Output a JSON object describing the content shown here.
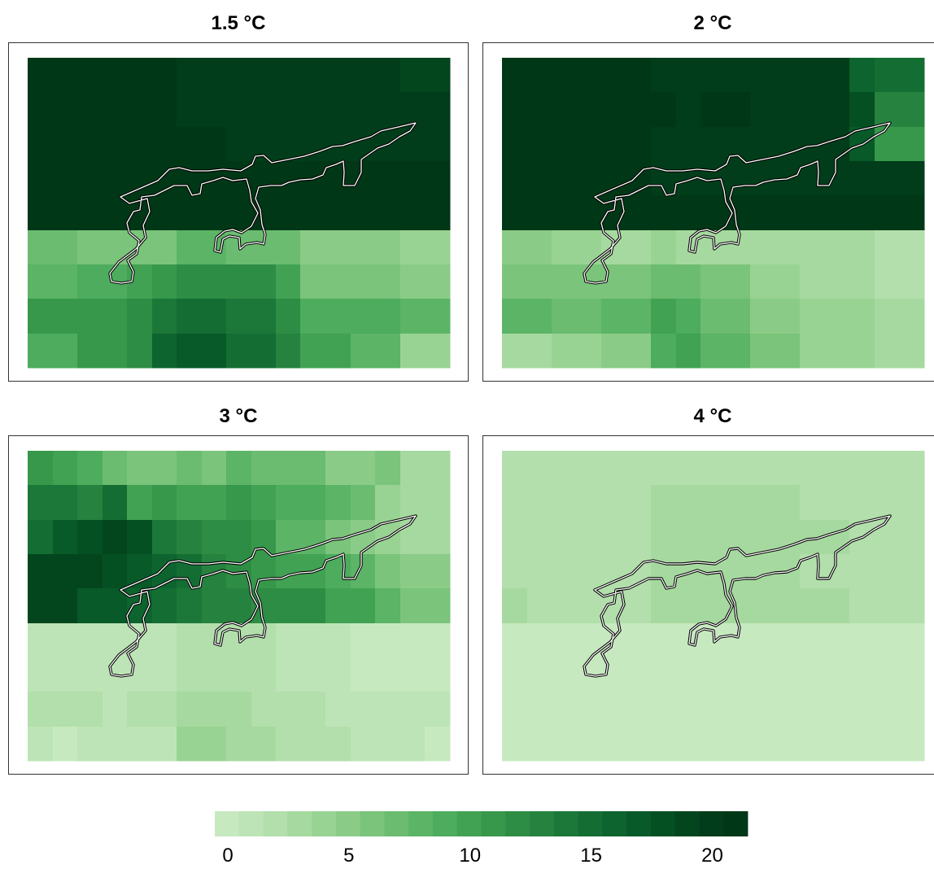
{
  "chart_data": {
    "type": "heatmap",
    "colorbar": {
      "range": [
        0,
        22
      ],
      "steps": 22,
      "ticks": [
        "0",
        "5",
        "10",
        "15",
        "20"
      ],
      "tick_values": [
        0,
        5,
        10,
        15,
        20
      ],
      "colors": [
        "#c7e9c0",
        "#bde4b6",
        "#b2dfab",
        "#a6d99f",
        "#99d393",
        "#8acc87",
        "#7bc47b",
        "#6bbc70",
        "#5cb466",
        "#4dac5d",
        "#41a253",
        "#37984b",
        "#2e8d44",
        "#25833f",
        "#1c7839",
        "#146e33",
        "#0d642e",
        "#085a28",
        "#055023",
        "#03461e",
        "#013d1a",
        "#003716"
      ]
    },
    "panels": [
      {
        "title": "1.5 °C",
        "cols": [
          0,
          61,
          122,
          153,
          183,
          244,
          305,
          335,
          397,
          458,
          519
        ],
        "rows": [
          0,
          42,
          85,
          127,
          169,
          212,
          254,
          296,
          339,
          381
        ],
        "values": [
          [
            22,
            22,
            22,
            22,
            20,
            20,
            20,
            20,
            20,
            19
          ],
          [
            22,
            22,
            22,
            22,
            20,
            20,
            20,
            20,
            20,
            20
          ],
          [
            22,
            22,
            22,
            22,
            22,
            20,
            20,
            20,
            20,
            20
          ],
          [
            21,
            21,
            21,
            21,
            21,
            21,
            21,
            21,
            21,
            21
          ],
          [
            21,
            21,
            21,
            21,
            21,
            21,
            21,
            21,
            21,
            21
          ],
          [
            7,
            6,
            6,
            6,
            8,
            7,
            7,
            5,
            5,
            4
          ],
          [
            8,
            9,
            10,
            11,
            12,
            12,
            10,
            6,
            6,
            5
          ],
          [
            11,
            11,
            12,
            14,
            15,
            14,
            12,
            9,
            9,
            8
          ],
          [
            9,
            11,
            12,
            16,
            17,
            15,
            13,
            10,
            8,
            4
          ]
        ]
      },
      {
        "title": "2 °C",
        "cols": [
          0,
          61,
          122,
          183,
          214,
          244,
          305,
          366,
          427,
          458,
          488,
          519
        ],
        "rows": [
          0,
          42,
          85,
          127,
          169,
          212,
          254,
          296,
          339,
          381
        ],
        "values": [
          [
            22,
            22,
            22,
            20,
            20,
            20,
            20,
            20,
            16,
            15,
            15
          ],
          [
            22,
            22,
            22,
            21,
            20,
            21,
            20,
            20,
            18,
            13,
            13
          ],
          [
            22,
            22,
            22,
            20,
            20,
            20,
            20,
            20,
            17,
            11,
            11
          ],
          [
            22,
            22,
            22,
            20,
            20,
            20,
            20,
            20,
            20,
            20,
            20
          ],
          [
            22,
            22,
            22,
            21,
            21,
            21,
            21,
            21,
            21,
            21,
            21
          ],
          [
            5,
            4,
            3,
            4,
            3,
            3,
            3,
            3,
            3,
            2,
            2
          ],
          [
            6,
            6,
            6,
            7,
            7,
            6,
            4,
            3,
            3,
            2,
            2
          ],
          [
            8,
            7,
            8,
            10,
            9,
            7,
            5,
            4,
            4,
            3,
            3
          ],
          [
            3,
            4,
            5,
            9,
            10,
            8,
            6,
            4,
            4,
            3,
            3
          ]
        ]
      },
      {
        "title": "3 °C",
        "cols": [
          0,
          31,
          61,
          92,
          122,
          153,
          183,
          214,
          244,
          275,
          305,
          366,
          397,
          427,
          458,
          488,
          519
        ],
        "rows": [
          0,
          42,
          85,
          127,
          169,
          212,
          254,
          296,
          339,
          381
        ],
        "values": [
          [
            11,
            10,
            9,
            7,
            6,
            6,
            7,
            6,
            8,
            7,
            7,
            5,
            5,
            6,
            3,
            3
          ],
          [
            14,
            14,
            13,
            15,
            10,
            11,
            10,
            10,
            11,
            10,
            9,
            8,
            7,
            4,
            3,
            3
          ],
          [
            15,
            17,
            18,
            19,
            18,
            14,
            13,
            12,
            12,
            11,
            8,
            6,
            5,
            4,
            3,
            3
          ],
          [
            19,
            19,
            19,
            18,
            17,
            16,
            15,
            13,
            12,
            11,
            10,
            9,
            8,
            6,
            5,
            5
          ],
          [
            19,
            19,
            17,
            17,
            16,
            15,
            14,
            13,
            13,
            12,
            12,
            10,
            10,
            8,
            6,
            6
          ],
          [
            1,
            1,
            1,
            1,
            1,
            1,
            2,
            2,
            2,
            2,
            1,
            1,
            0,
            0,
            0,
            0
          ],
          [
            1,
            1,
            1,
            1,
            1,
            1,
            2,
            2,
            2,
            2,
            1,
            1,
            0,
            0,
            0,
            0
          ],
          [
            2,
            2,
            2,
            1,
            2,
            2,
            3,
            3,
            3,
            2,
            2,
            1,
            1,
            1,
            1,
            1
          ],
          [
            1,
            0,
            1,
            1,
            1,
            1,
            4,
            4,
            3,
            3,
            2,
            2,
            1,
            1,
            1,
            0
          ]
        ]
      },
      {
        "title": "4 °C",
        "cols": [
          0,
          31,
          183,
          366,
          427,
          519
        ],
        "rows": [
          0,
          42,
          85,
          127,
          169,
          212,
          254,
          296,
          339,
          381
        ],
        "values": [
          [
            2,
            2,
            2,
            2,
            2
          ],
          [
            2,
            2,
            3,
            2,
            2
          ],
          [
            2,
            2,
            3,
            3,
            2
          ],
          [
            2,
            2,
            3,
            2,
            2
          ],
          [
            3,
            2,
            3,
            3,
            2
          ],
          [
            0,
            0,
            0,
            0,
            0
          ],
          [
            0,
            0,
            0,
            0,
            0
          ],
          [
            0,
            0,
            0,
            0,
            0
          ],
          [
            0,
            0,
            0,
            0,
            0
          ]
        ]
      }
    ]
  }
}
